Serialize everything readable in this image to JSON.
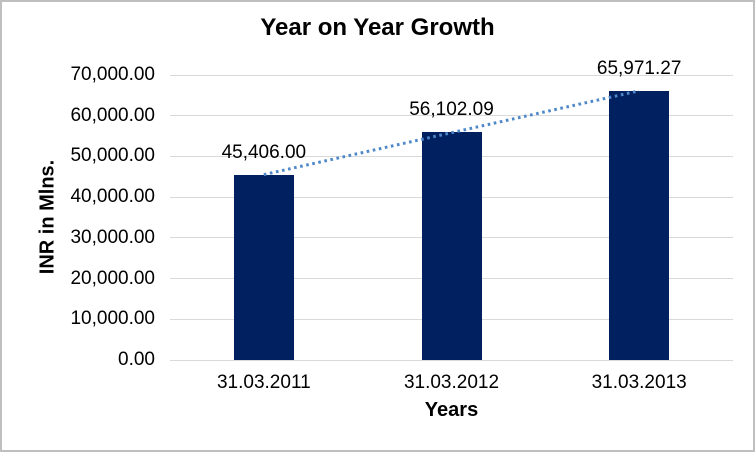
{
  "chart_data": {
    "type": "bar",
    "title": "Year on Year Growth",
    "xlabel": "Years",
    "ylabel": "INR in Mlns.",
    "categories": [
      "31.03.2011",
      "31.03.2012",
      "31.03.2013"
    ],
    "values": [
      45406.0,
      56102.09,
      65971.27
    ],
    "data_labels": [
      "45,406.00",
      "56,102.09",
      "65,971.27"
    ],
    "y_ticks": [
      {
        "value": 0,
        "label": "0.00"
      },
      {
        "value": 10000,
        "label": "10,000.00"
      },
      {
        "value": 20000,
        "label": "20,000.00"
      },
      {
        "value": 30000,
        "label": "30,000.00"
      },
      {
        "value": 40000,
        "label": "40,000.00"
      },
      {
        "value": 50000,
        "label": "50,000.00"
      },
      {
        "value": 60000,
        "label": "60,000.00"
      },
      {
        "value": 70000,
        "label": "70,000.00"
      }
    ],
    "ylim": [
      0,
      70000
    ],
    "grid": true,
    "legend": "none",
    "trendline": {
      "type": "linear",
      "style": "dotted"
    },
    "colors": {
      "bar": "#002060",
      "trendline": "#4e88ca",
      "gridline": "#d9d9d9",
      "text": "#000000",
      "frame": "#bfbfbf",
      "background": "#ffffff"
    }
  }
}
